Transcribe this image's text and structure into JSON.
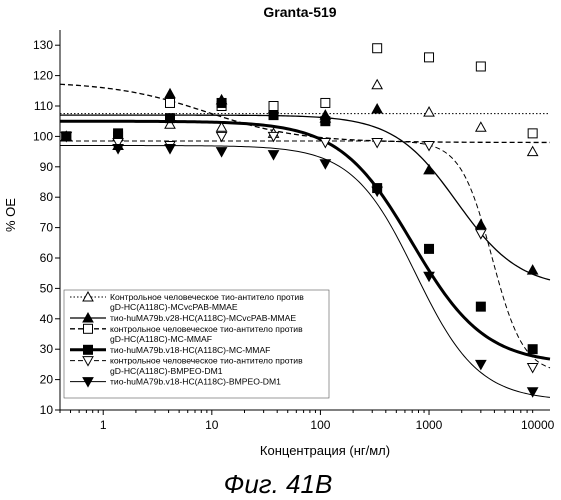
{
  "chart_data": {
    "type": "scatter",
    "title": "Granta-519",
    "xlabel": "Концентрация (нг/мл)",
    "ylabel": "% OE",
    "caption": "Фиг. 41B",
    "xscale": "log",
    "xlim": [
      0.4,
      13000
    ],
    "ylim": [
      10,
      135
    ],
    "xticks": [
      1,
      10,
      100,
      1000,
      10000
    ],
    "xtick_labels": [
      "1",
      "10",
      "100",
      "1000",
      "10000"
    ],
    "yticks": [
      10,
      20,
      30,
      40,
      50,
      60,
      70,
      80,
      90,
      100,
      110,
      120,
      130
    ],
    "ytick_labels": [
      "10",
      "20",
      "30",
      "40",
      "50",
      "60",
      "70",
      "80",
      "90",
      "100",
      "110",
      "120",
      "130"
    ],
    "grid": false,
    "legend_position": "bottom-left",
    "legend": [
      {
        "lines": [
          "Контрольное человеческое тио-антитело против",
          "gD-HC(A118C)-MCvcPAB-MMAE"
        ],
        "series_index": 0
      },
      {
        "lines": [
          "тио-huMA79b.v28-HC(A118C)-MCvcPAB-MMAE"
        ],
        "series_index": 1
      },
      {
        "lines": [
          "контрольное человеческое тио-антитело против",
          "gD-HC(A118C)-MC-MMAF"
        ],
        "series_index": 2
      },
      {
        "lines": [
          "тио-huMA79b.v18-HC(A118C)-MC-MMAF"
        ],
        "series_index": 3
      },
      {
        "lines": [
          "контрольное человеческое тио-антитело против",
          "gD-HC(A118C)-BMPEO-DM1"
        ],
        "series_index": 4
      },
      {
        "lines": [
          "тио-huMA79b.v18-HC(A118C)-BMPEO-DM1"
        ],
        "series_index": 5
      }
    ],
    "series": [
      {
        "marker": "triangle-up-open",
        "line_style": "dotted",
        "line_width": 1,
        "color": "#000000",
        "x": [
          0.457,
          1.37,
          4.12,
          12.3,
          37.0,
          111,
          333,
          1000,
          3000,
          9000
        ],
        "y": [
          100,
          100,
          104,
          103,
          101,
          106,
          117,
          108,
          103,
          95
        ],
        "fit": {
          "bottom": 107.5,
          "top": 107.5,
          "ec50": 1000,
          "hill": 1
        }
      },
      {
        "marker": "triangle-up-filled",
        "line_style": "solid",
        "line_width": 1.3,
        "color": "#000000",
        "x": [
          0.457,
          1.37,
          4.12,
          12.3,
          37.0,
          111,
          333,
          1000,
          3000,
          9000
        ],
        "y": [
          100,
          97,
          114,
          112,
          109,
          107,
          109,
          89,
          71,
          56
        ],
        "fit": {
          "bottom": 50,
          "top": 107,
          "ec50": 1800,
          "hill": 1.5
        }
      },
      {
        "marker": "square-open",
        "line_style": "dashed",
        "line_width": 1.3,
        "color": "#000000",
        "x": [
          0.457,
          1.37,
          4.12,
          12.3,
          37.0,
          111,
          333,
          1000,
          3000,
          9000
        ],
        "y": [
          100,
          100,
          111,
          110,
          110,
          111,
          129,
          126,
          123,
          101
        ],
        "fit": {
          "bottom": 98,
          "top": 118,
          "ec50": 9,
          "hill": 1
        }
      },
      {
        "marker": "square-filled",
        "line_style": "solid",
        "line_width": 3,
        "color": "#000000",
        "x": [
          0.457,
          1.37,
          4.12,
          12.3,
          37.0,
          111,
          333,
          1000,
          3000,
          9000
        ],
        "y": [
          100,
          101,
          106,
          111,
          107,
          105,
          83,
          63,
          44,
          30
        ],
        "fit": {
          "bottom": 25,
          "top": 105,
          "ec50": 700,
          "hill": 1.3
        }
      },
      {
        "marker": "triangle-down-open",
        "line_style": "dashed",
        "line_width": 1,
        "color": "#000000",
        "x": [
          0.457,
          1.37,
          4.12,
          12.3,
          37.0,
          111,
          333,
          1000,
          3000,
          9000
        ],
        "y": [
          100,
          98,
          97,
          100,
          100,
          98,
          98,
          97,
          68,
          24
        ],
        "fit": {
          "bottom": 22,
          "top": 98.5,
          "ec50": 3800,
          "hill": 3
        }
      },
      {
        "marker": "triangle-down-filled",
        "line_style": "solid",
        "line_width": 1,
        "color": "#000000",
        "x": [
          0.457,
          1.37,
          4.12,
          12.3,
          37.0,
          111,
          333,
          1000,
          3000,
          9000
        ],
        "y": [
          100,
          96,
          96,
          95,
          94,
          91,
          82,
          54,
          25,
          16
        ],
        "fit": {
          "bottom": 13,
          "top": 97,
          "ec50": 750,
          "hill": 1.5
        }
      }
    ]
  }
}
